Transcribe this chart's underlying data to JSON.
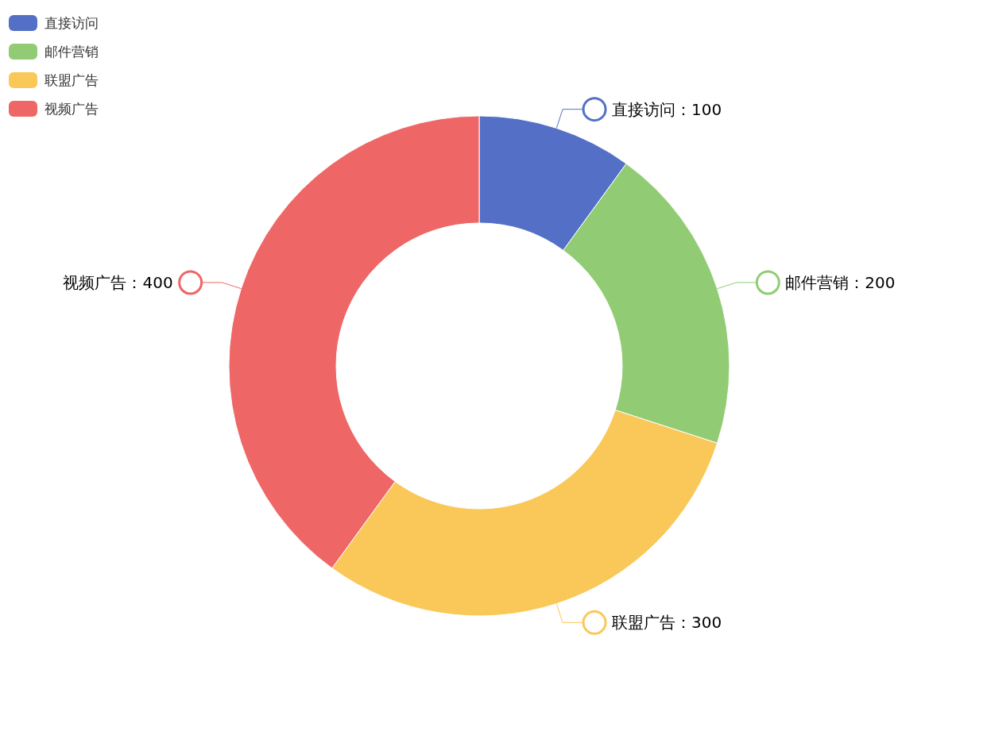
{
  "chart_data": {
    "type": "donut",
    "categories": [
      "直接访问",
      "邮件营销",
      "联盟广告",
      "视频广告"
    ],
    "values": [
      100,
      200,
      300,
      400
    ],
    "colors": [
      "#5470c6",
      "#91cc75",
      "#fac858",
      "#ee6666"
    ],
    "value_labels": [
      "：100",
      "：200",
      "：300",
      "：400"
    ],
    "legend": "top left"
  }
}
